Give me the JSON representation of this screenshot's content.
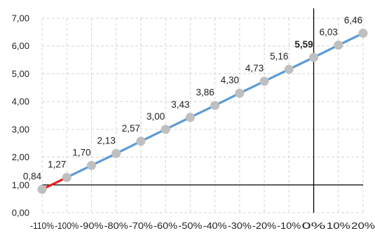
{
  "chart_data": {
    "type": "line",
    "title": "",
    "xlabel": "",
    "ylabel": "",
    "x_tick_labels": [
      "-110%",
      "-100%",
      "-90%",
      "-80%",
      "-70%",
      "-60%",
      "-50%",
      "-40%",
      "-30%",
      "-20%",
      "-10%",
      "0%",
      "10%",
      "20%"
    ],
    "x": [
      -110,
      -100,
      -90,
      -80,
      -70,
      -60,
      -50,
      -40,
      -30,
      -20,
      -10,
      0,
      10,
      20
    ],
    "xlim": [
      -110,
      20
    ],
    "y_tick_labels": [
      "0,00",
      "1,00",
      "2,00",
      "3,00",
      "4,00",
      "5,00",
      "6,00",
      "7,00"
    ],
    "ylim": [
      0,
      7
    ],
    "y_step": 1,
    "grid": "dashed",
    "reference_lines": {
      "x": 0,
      "y": 1
    },
    "series": [
      {
        "values": [
          0.84,
          1.27,
          1.7,
          2.13,
          2.57,
          3.0,
          3.43,
          3.86,
          4.3,
          4.73,
          5.16,
          5.59,
          6.03,
          6.46
        ],
        "labels": [
          "0,84",
          "1,27",
          "1,70",
          "2,13",
          "2,57",
          "3,00",
          "3,43",
          "3,86",
          "4,30",
          "4,73",
          "5,16",
          "5,59",
          "6,03",
          "6,46"
        ],
        "bold_label_index": 11,
        "highlight_first_segment": true
      }
    ],
    "colors": {
      "line": "#5B9BD5",
      "first_segment": "#E8201A",
      "marker": "#BFBFBF",
      "grid": "#D4D4D4",
      "reference": "#000000"
    }
  }
}
